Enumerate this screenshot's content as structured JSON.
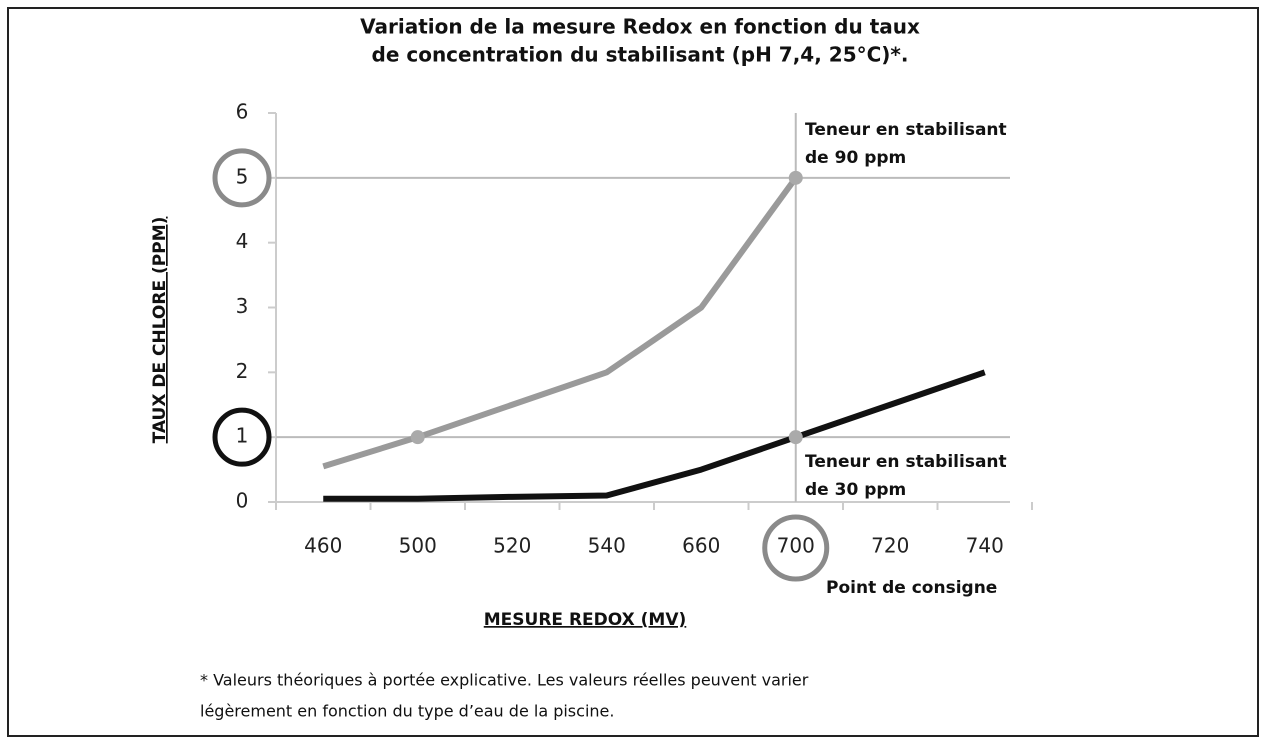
{
  "chart_data": {
    "type": "line",
    "title": [
      "Variation de la mesure Redox en fonction du taux",
      "de concentration du stabilisant (pH 7,4, 25°C)*."
    ],
    "x_label": "MESURE REDOX (MV)",
    "y_label": "TAUX DE CHLORE (PPM)",
    "categories": [
      "460",
      "500",
      "520",
      "540",
      "660",
      "700",
      "720",
      "740"
    ],
    "series": [
      {
        "color": "#9a9a9a",
        "values": [
          0.55,
          1,
          1.5,
          2,
          3,
          5,
          null,
          null
        ]
      },
      {
        "color": "#111111",
        "values": [
          0.05,
          0.05,
          0.08,
          0.1,
          0.5,
          1,
          1.5,
          2
        ]
      }
    ],
    "ylim": [
      0,
      6
    ],
    "yticks": [
      0,
      1,
      2,
      3,
      4,
      5,
      6
    ],
    "reference_y": [
      5,
      1
    ],
    "reference_x": "700",
    "annotations": [
      {
        "lines": [
          "Teneur en stabilisant",
          "de 90 ppm"
        ]
      },
      {
        "lines": [
          "Teneur en stabilisant",
          "de 30 ppm"
        ]
      },
      {
        "lines": [
          "Point de consigne"
        ]
      }
    ],
    "footnote": [
      "* Valeurs théoriques à portée explicative. Les valeurs réelles peuvent varier",
      "légèrement en fonction du type d’eau de la piscine."
    ]
  }
}
